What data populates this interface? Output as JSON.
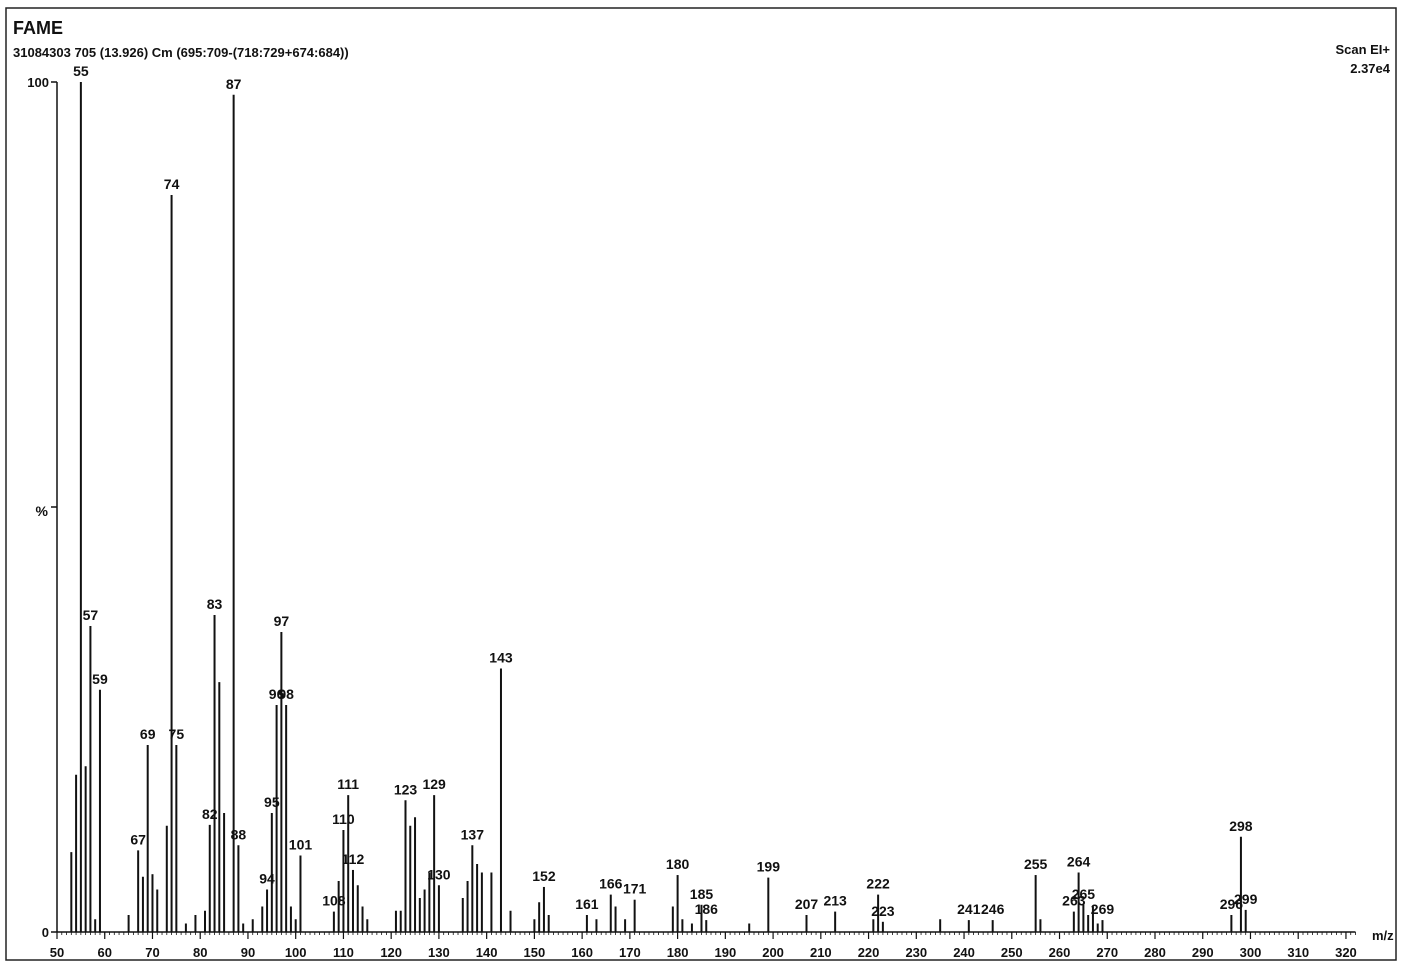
{
  "chart_data": {
    "type": "spectrum",
    "title": "FAME",
    "subtitle": "31084303 705 (13.926) Cm (695:709-(718:729+674:684))",
    "scan_label": "Scan EI+",
    "intensity_label": "2.37e4",
    "y_label": "%",
    "x_label": "m/z",
    "xlim": [
      50,
      322
    ],
    "xticks": [
      50,
      60,
      70,
      80,
      90,
      100,
      110,
      120,
      130,
      140,
      150,
      160,
      170,
      180,
      190,
      200,
      210,
      220,
      230,
      240,
      250,
      260,
      270,
      280,
      290,
      300,
      310,
      320
    ],
    "ylim": [
      0,
      100
    ],
    "yticks": [
      0,
      100
    ],
    "color": "#111111",
    "series": [
      {
        "show_labels": true,
        "x": [
          55,
          57,
          59,
          67,
          69,
          74,
          75,
          82,
          83,
          87,
          88,
          94,
          95,
          96,
          97,
          98,
          101,
          108,
          110,
          111,
          112,
          123,
          129,
          130,
          137,
          143,
          152,
          161,
          166,
          171,
          180,
          185,
          186,
          199,
          207,
          213,
          222,
          223,
          241,
          246,
          255,
          263,
          264,
          265,
          269,
          296,
          298,
          299
        ],
        "values": [
          100,
          36,
          28.5,
          9.6,
          22,
          86.7,
          22,
          12.6,
          37.3,
          98.5,
          10.2,
          5,
          14,
          26.7,
          35.3,
          26.7,
          9,
          2.4,
          12,
          16.1,
          7.3,
          15.5,
          16.1,
          5.5,
          10.2,
          31,
          5.3,
          2,
          4.4,
          3.8,
          6.7,
          3.2,
          1.4,
          6.4,
          2,
          2.4,
          4.4,
          1.2,
          1.4,
          1.4,
          6.7,
          2.4,
          7,
          3.2,
          1.4,
          2,
          11.2,
          2.6
        ]
      },
      {
        "show_labels": false,
        "x": [
          53,
          54,
          56,
          58,
          65,
          68,
          70,
          71,
          73,
          77,
          79,
          81,
          84,
          85,
          89,
          91,
          93,
          99,
          100,
          109,
          113,
          114,
          115,
          121,
          122,
          124,
          125,
          126,
          127,
          128,
          135,
          136,
          138,
          139,
          141,
          145,
          150,
          151,
          153,
          163,
          167,
          169,
          179,
          181,
          183,
          195,
          221,
          235,
          256,
          266,
          267,
          268
        ],
        "values": [
          9.4,
          18.5,
          19.5,
          1.5,
          2,
          6.5,
          6.8,
          5,
          12.5,
          1,
          2,
          2.5,
          29.4,
          14,
          1,
          1.5,
          3,
          3,
          1.5,
          6,
          5.5,
          3,
          1.5,
          2.5,
          2.5,
          12.5,
          13.5,
          4,
          5,
          7,
          4,
          6,
          8,
          7,
          7,
          2.5,
          1.5,
          3.5,
          2,
          1.5,
          3,
          1.5,
          3,
          1.5,
          1,
          1,
          1.5,
          1.5,
          1.5,
          2,
          3,
          1
        ]
      }
    ]
  }
}
